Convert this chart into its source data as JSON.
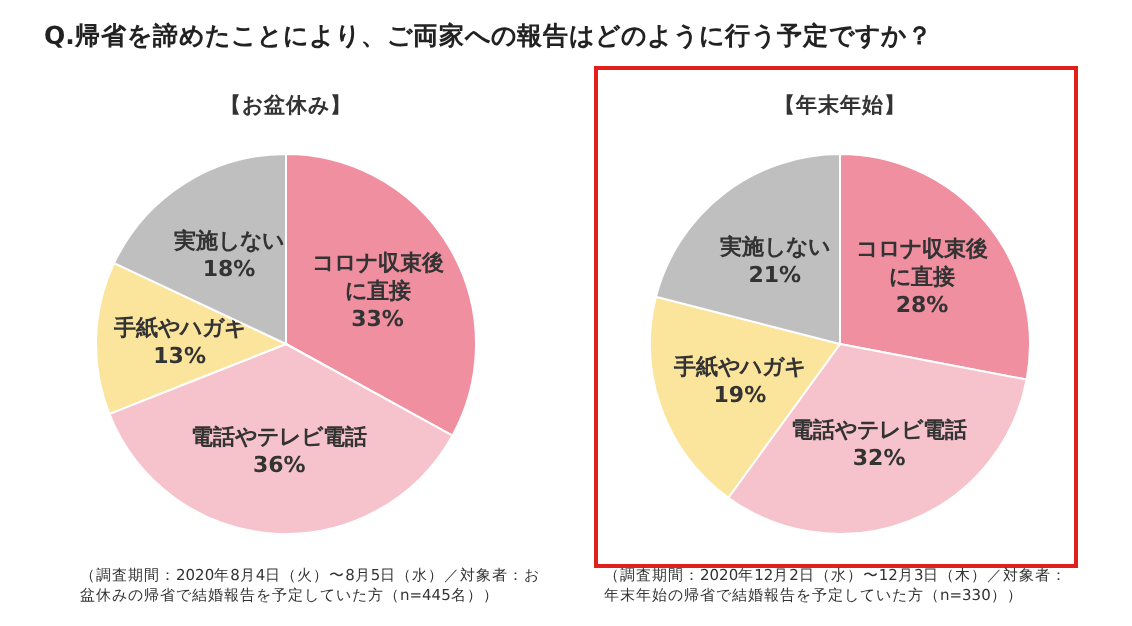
{
  "chart_data": [
    {
      "type": "pie",
      "title": "Q.帰省を諦めたことにより、ご両家への報告はどのように行う予定ですか？",
      "subtitle": "【お盆休み】",
      "categories": [
        "コロナ収束後に直接",
        "電話やテレビ電話",
        "手紙やハガキ",
        "実施しない"
      ],
      "values": [
        33,
        36,
        13,
        18
      ],
      "value_labels": [
        "33%",
        "36%",
        "13%",
        "18%"
      ],
      "colors": [
        "#ef8fa0",
        "#f6c3cd",
        "#fbe49c",
        "#bfbfbf"
      ],
      "annotations": [
        "（調査期間：2020年8月4日（火）〜8月5日（水）／対象者：お盆休みの帰省で結婚報告を予定していた方（n=445名））"
      ]
    },
    {
      "type": "pie",
      "subtitle": "【年末年始】",
      "categories": [
        "コロナ収束後に直接",
        "電話やテレビ電話",
        "手紙やハガキ",
        "実施しない"
      ],
      "values": [
        28,
        32,
        19,
        21
      ],
      "value_labels": [
        "28%",
        "32%",
        "19%",
        "21%"
      ],
      "colors": [
        "#ef8fa0",
        "#f6c3cd",
        "#fbe49c",
        "#bfbfbf"
      ],
      "annotations": [
        "（調査期間：2020年12月2日（水）〜12月3日（木）／対象者：年末年始の帰省で結婚報告を予定していた方（n=330））"
      ]
    }
  ]
}
